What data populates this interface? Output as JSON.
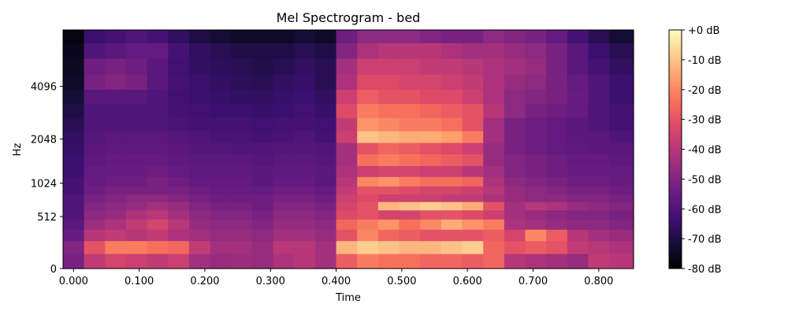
{
  "chart_data": {
    "type": "heatmap",
    "title": "Mel Spectrogram - bed",
    "xlabel": "Time",
    "ylabel": "Hz",
    "x_ticks": [
      "0.000",
      "0.100",
      "0.200",
      "0.300",
      "0.400",
      "0.500",
      "0.600",
      "0.700",
      "0.800"
    ],
    "x_tick_values": [
      0.0,
      0.1,
      0.2,
      0.3,
      0.4,
      0.5,
      0.6,
      0.7,
      0.8
    ],
    "xlim": [
      -0.016,
      0.853
    ],
    "y_ticks": [
      "0",
      "512",
      "1024",
      "2048",
      "4096"
    ],
    "y_tick_values": [
      0,
      512,
      1024,
      2048,
      4096
    ],
    "y_scale": "mel",
    "ylim": [
      0,
      8000
    ],
    "colormap": "magma",
    "colorbar": {
      "ticks": [
        "+0 dB",
        "-10 dB",
        "-20 dB",
        "-30 dB",
        "-40 dB",
        "-50 dB",
        "-60 dB",
        "-70 dB",
        "-80 dB"
      ],
      "tick_values": [
        0,
        -10,
        -20,
        -30,
        -40,
        -50,
        -60,
        -70,
        -80
      ],
      "range": [
        -80,
        0
      ]
    },
    "time_frames": [
      0.0,
      0.032,
      0.064,
      0.096,
      0.128,
      0.16,
      0.192,
      0.224,
      0.256,
      0.288,
      0.32,
      0.352,
      0.384,
      0.416,
      0.448,
      0.48,
      0.512,
      0.544,
      0.576,
      0.608,
      0.64,
      0.672,
      0.704,
      0.736,
      0.768,
      0.8,
      0.832
    ],
    "band_centers_hz": [
      60,
      180,
      300,
      420,
      540,
      660,
      780,
      900,
      1050,
      1250,
      1500,
      1800,
      2100,
      2500,
      3000,
      3600,
      4300,
      5200,
      6300,
      7500
    ],
    "db_values": [
      [
        -52,
        -38,
        -34,
        -36,
        -38,
        -36,
        -44,
        -46,
        -45,
        -46,
        -42,
        -40,
        -44,
        -28,
        -22,
        -24,
        -24,
        -26,
        -26,
        -28,
        -26,
        -40,
        -42,
        -44,
        -46,
        -38,
        -40
      ],
      [
        -50,
        -30,
        -22,
        -22,
        -24,
        -26,
        -38,
        -44,
        -44,
        -46,
        -40,
        -40,
        -44,
        -12,
        -8,
        -10,
        -12,
        -12,
        -10,
        -8,
        -26,
        -30,
        -28,
        -30,
        -38,
        -40,
        -42
      ],
      [
        -55,
        -40,
        -38,
        -40,
        -38,
        -42,
        -44,
        -46,
        -46,
        -48,
        -44,
        -44,
        -46,
        -30,
        -20,
        -26,
        -28,
        -30,
        -30,
        -30,
        -28,
        -34,
        -20,
        -28,
        -40,
        -44,
        -46
      ],
      [
        -58,
        -45,
        -42,
        -38,
        -34,
        -40,
        -46,
        -48,
        -48,
        -50,
        -46,
        -46,
        -48,
        -26,
        -22,
        -18,
        -24,
        -20,
        -14,
        -18,
        -22,
        -42,
        -44,
        -46,
        -48,
        -48,
        -50
      ],
      [
        -60,
        -48,
        -46,
        -42,
        -40,
        -44,
        -48,
        -50,
        -50,
        -52,
        -48,
        -48,
        -50,
        -32,
        -30,
        -34,
        -34,
        -30,
        -30,
        -32,
        -36,
        -44,
        -46,
        -48,
        -50,
        -50,
        -52
      ],
      [
        -60,
        -50,
        -48,
        -46,
        -44,
        -46,
        -50,
        -52,
        -52,
        -54,
        -50,
        -50,
        -52,
        -34,
        -30,
        -12,
        -10,
        -8,
        -10,
        -14,
        -30,
        -44,
        -40,
        -42,
        -46,
        -48,
        -50
      ],
      [
        -60,
        -52,
        -50,
        -48,
        -48,
        -50,
        -52,
        -54,
        -54,
        -54,
        -52,
        -52,
        -54,
        -36,
        -32,
        -36,
        -36,
        -36,
        -38,
        -38,
        -42,
        -46,
        -48,
        -48,
        -50,
        -50,
        -52
      ],
      [
        -62,
        -54,
        -52,
        -52,
        -52,
        -52,
        -54,
        -55,
        -55,
        -56,
        -54,
        -54,
        -56,
        -38,
        -30,
        -30,
        -32,
        -34,
        -34,
        -36,
        -40,
        -46,
        -48,
        -50,
        -52,
        -52,
        -54
      ],
      [
        -62,
        -55,
        -54,
        -54,
        -52,
        -54,
        -56,
        -56,
        -56,
        -58,
        -56,
        -56,
        -58,
        -40,
        -20,
        -18,
        -22,
        -24,
        -24,
        -26,
        -42,
        -48,
        -50,
        -52,
        -54,
        -54,
        -55
      ],
      [
        -64,
        -56,
        -55,
        -55,
        -54,
        -56,
        -57,
        -57,
        -57,
        -58,
        -57,
        -57,
        -58,
        -42,
        -36,
        -34,
        -34,
        -36,
        -36,
        -40,
        -44,
        -50,
        -52,
        -54,
        -55,
        -55,
        -56
      ],
      [
        -64,
        -57,
        -56,
        -56,
        -56,
        -57,
        -58,
        -58,
        -58,
        -59,
        -58,
        -58,
        -59,
        -44,
        -24,
        -22,
        -24,
        -26,
        -28,
        -30,
        -46,
        -50,
        -52,
        -54,
        -56,
        -56,
        -57
      ],
      [
        -65,
        -58,
        -57,
        -57,
        -57,
        -58,
        -59,
        -59,
        -60,
        -60,
        -59,
        -59,
        -60,
        -44,
        -30,
        -26,
        -28,
        -30,
        -32,
        -36,
        -46,
        -52,
        -54,
        -56,
        -57,
        -58,
        -58
      ],
      [
        -66,
        -59,
        -58,
        -58,
        -58,
        -59,
        -60,
        -61,
        -61,
        -62,
        -61,
        -60,
        -62,
        -36,
        -10,
        -12,
        -14,
        -14,
        -16,
        -22,
        -44,
        -52,
        -54,
        -56,
        -58,
        -58,
        -60
      ],
      [
        -68,
        -60,
        -60,
        -60,
        -60,
        -61,
        -62,
        -62,
        -62,
        -63,
        -62,
        -62,
        -63,
        -38,
        -18,
        -20,
        -22,
        -22,
        -24,
        -30,
        -44,
        -52,
        -54,
        -56,
        -58,
        -60,
        -62
      ],
      [
        -70,
        -60,
        -60,
        -60,
        -60,
        -62,
        -63,
        -64,
        -64,
        -65,
        -64,
        -63,
        -65,
        -32,
        -22,
        -24,
        -24,
        -26,
        -28,
        -30,
        -40,
        -48,
        -52,
        -54,
        -56,
        -60,
        -62
      ],
      [
        -72,
        -58,
        -58,
        -58,
        -60,
        -63,
        -64,
        -65,
        -66,
        -66,
        -65,
        -64,
        -66,
        -36,
        -28,
        -30,
        -30,
        -32,
        -32,
        -36,
        -42,
        -48,
        -50,
        -52,
        -55,
        -60,
        -64
      ],
      [
        -74,
        -52,
        -50,
        -52,
        -58,
        -62,
        -64,
        -66,
        -67,
        -68,
        -66,
        -65,
        -68,
        -42,
        -32,
        -32,
        -34,
        -34,
        -36,
        -38,
        -42,
        -46,
        -48,
        -52,
        -56,
        -60,
        -64
      ],
      [
        -75,
        -54,
        -52,
        -54,
        -58,
        -63,
        -66,
        -67,
        -68,
        -69,
        -68,
        -66,
        -68,
        -44,
        -36,
        -36,
        -36,
        -38,
        -38,
        -40,
        -42,
        -44,
        -46,
        -52,
        -58,
        -62,
        -66
      ],
      [
        -76,
        -60,
        -58,
        -56,
        -56,
        -62,
        -66,
        -68,
        -70,
        -70,
        -70,
        -68,
        -70,
        -50,
        -42,
        -40,
        -40,
        -40,
        -42,
        -44,
        -44,
        -46,
        -48,
        -52,
        -58,
        -64,
        -68
      ],
      [
        -78,
        -64,
        -62,
        -60,
        -62,
        -66,
        -70,
        -72,
        -74,
        -74,
        -74,
        -72,
        -74,
        -54,
        -48,
        -48,
        -48,
        -50,
        -52,
        -52,
        -48,
        -50,
        -52,
        -56,
        -62,
        -68,
        -72
      ]
    ]
  }
}
